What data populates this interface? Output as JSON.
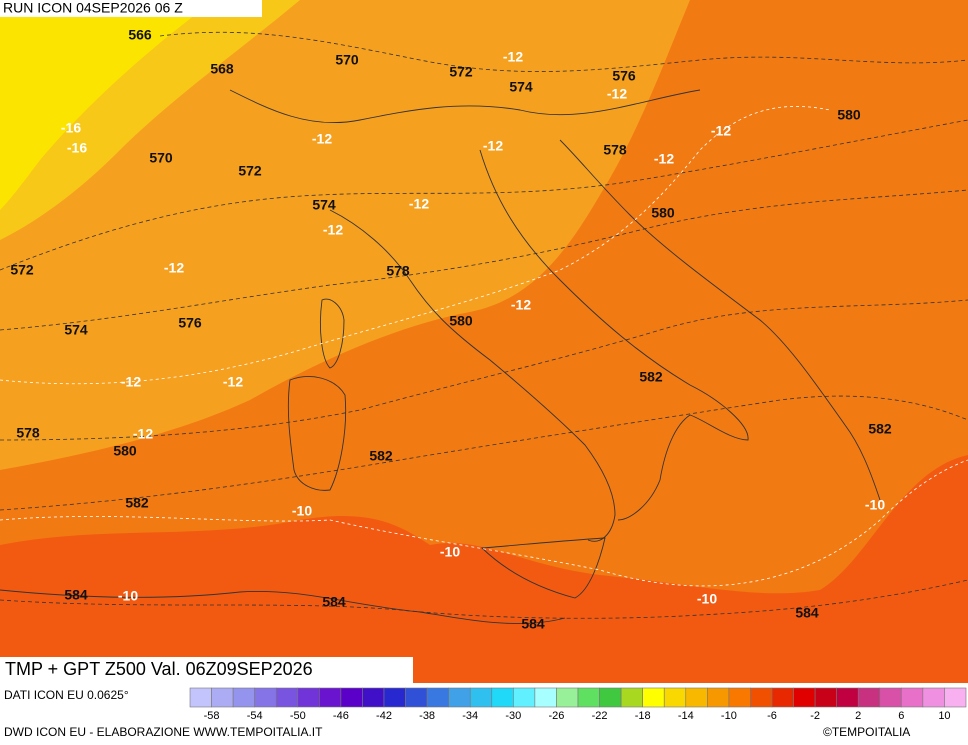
{
  "header": {
    "title": "RUN ICON 04SEP2026 06 Z"
  },
  "map": {
    "labels": [
      "566",
      "568",
      "570",
      "572",
      "574",
      "576",
      "-12",
      "-12",
      "580",
      "-12",
      "-16",
      "-16",
      "570",
      "572",
      "-12",
      "-12",
      "578",
      "-12",
      "574",
      "-12",
      "580",
      "-12",
      "572",
      "-12",
      "578",
      "576",
      "574",
      "580",
      "-12",
      "-12",
      "-12",
      "582",
      "578",
      "-12",
      "580",
      "582",
      "582",
      "582",
      "-10",
      "-10",
      "-10",
      "584",
      "-10",
      "584",
      "-10",
      "584",
      "584"
    ]
  },
  "footer": {
    "title": "TMP + GPT Z500 Val. 06Z09SEP2026",
    "source": "DATI ICON EU 0.0625°",
    "credit": "DWD ICON EU - ELABORAZIONE WWW.TEMPOITALIA.IT",
    "brand": "©TEMPOITALIA"
  },
  "colorbar": {
    "colors": [
      "#c4c4fc",
      "#acacf4",
      "#9494ee",
      "#8474e8",
      "#7854e0",
      "#7034d8",
      "#6a14d0",
      "#5a00c8",
      "#4010c8",
      "#2828d0",
      "#3050d8",
      "#3878e0",
      "#40a0e8",
      "#30c0f0",
      "#20d8f8",
      "#60f0ff",
      "#a8ffff",
      "#98f098",
      "#60e060",
      "#40c840",
      "#a8d820",
      "#ffff00",
      "#f8d800",
      "#f8b800",
      "#f89800",
      "#f87800",
      "#f05000",
      "#e82800",
      "#e00000",
      "#c80018",
      "#c00040",
      "#c83080",
      "#d850a8",
      "#e870c8",
      "#f090e0",
      "#f8b0f0"
    ],
    "ticks": [
      -58,
      -54,
      -50,
      -46,
      -42,
      -38,
      -34,
      -30,
      -26,
      -22,
      -18,
      -14,
      -10,
      -6,
      -2,
      2,
      6,
      10
    ]
  }
}
